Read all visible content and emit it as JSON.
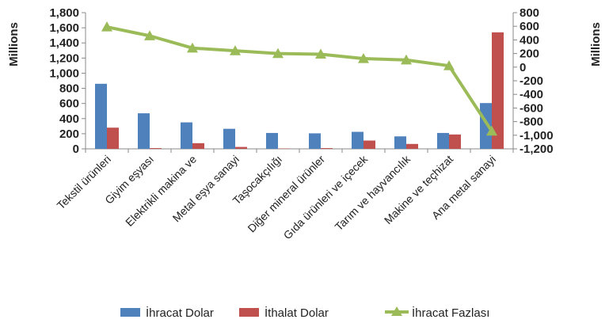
{
  "chart_data": {
    "type": "bar",
    "categories": [
      "Tekstil ürünleri",
      "Giyim eşyası",
      "Elektrikli makina ve",
      "Metal eşya sanayi",
      "Taşocakçılığı",
      "Diğer mineral ürünler",
      "Gıda ürünleri ve içecek",
      "Tarım ve hayvancılık",
      "Makine ve teçhizat",
      "Ana metal sanayi"
    ],
    "series": [
      {
        "name": "İhracat Dolar",
        "type": "bar",
        "axis": "left",
        "color": "#4F81BD",
        "values": [
          860,
          470,
          350,
          265,
          210,
          205,
          225,
          165,
          210,
          605
        ]
      },
      {
        "name": "İthalat Dolar",
        "type": "bar",
        "axis": "left",
        "color": "#C0504D",
        "values": [
          280,
          10,
          75,
          25,
          5,
          10,
          110,
          65,
          190,
          1540
        ]
      },
      {
        "name": "İhracat Fazlası",
        "type": "line",
        "axis": "right",
        "color": "#9BBB59",
        "values": [
          590,
          460,
          280,
          240,
          200,
          190,
          125,
          105,
          20,
          -940
        ]
      }
    ],
    "y_left": {
      "label": "Millions",
      "range": [
        0,
        1800
      ],
      "ticks": [
        "0",
        "200",
        "400",
        "600",
        "800",
        "1,000",
        "1,200",
        "1,400",
        "1,600",
        "1,800"
      ]
    },
    "y_right": {
      "label": "Millions",
      "range": [
        -1200,
        800
      ],
      "ticks": [
        "-1,200",
        "-1,000",
        "-800",
        "-600",
        "-400",
        "-200",
        "0",
        "200",
        "400",
        "600",
        "800"
      ]
    },
    "grid": false,
    "legend": "bottom",
    "title": "",
    "xlabel": ""
  }
}
